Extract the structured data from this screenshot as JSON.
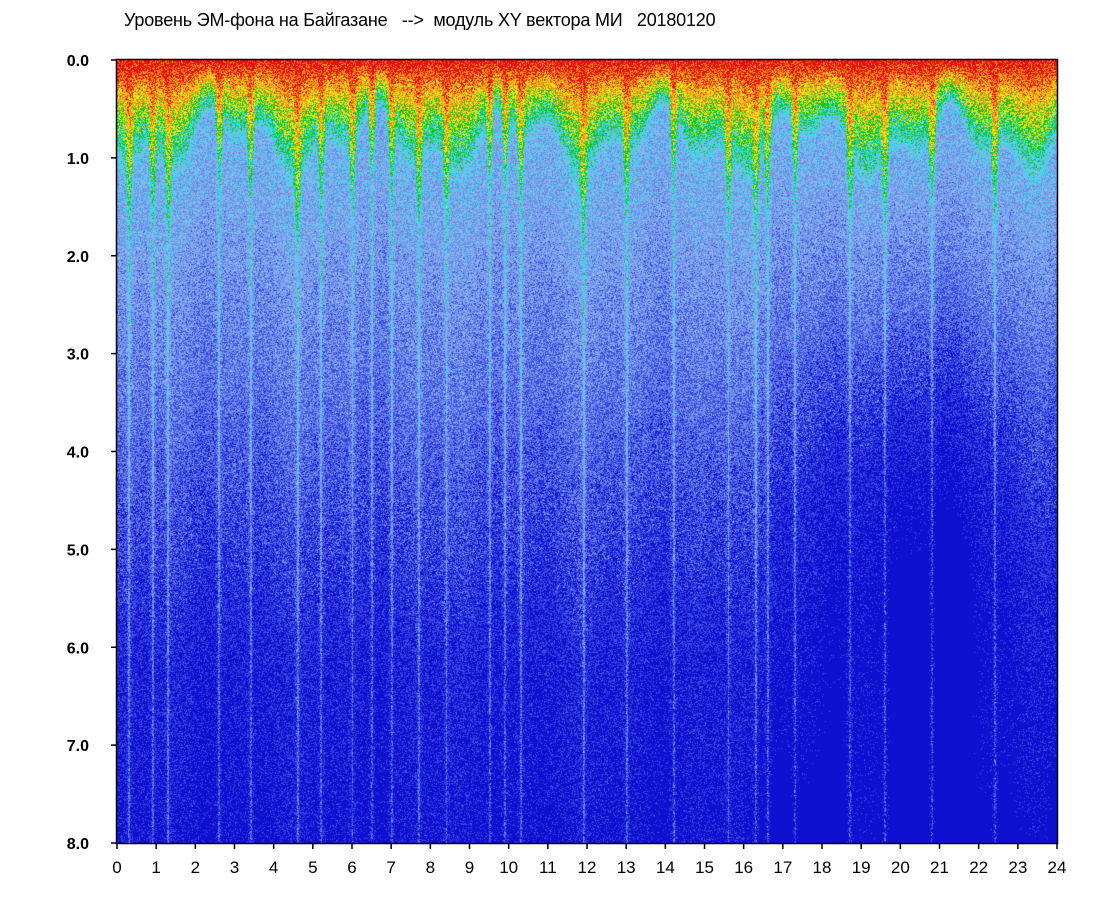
{
  "chart_data": {
    "type": "heatmap",
    "title": "Уровень ЭМ-фона на Байгазане   -->  модуль XY вектора МИ   20180120",
    "x": {
      "min": 0,
      "max": 24,
      "ticks": [
        "0",
        "1",
        "2",
        "3",
        "4",
        "5",
        "6",
        "7",
        "8",
        "9",
        "10",
        "11",
        "12",
        "13",
        "14",
        "15",
        "16",
        "17",
        "18",
        "19",
        "20",
        "21",
        "22",
        "23",
        "24"
      ]
    },
    "y": {
      "min": 0.0,
      "max": 8.0,
      "inverted": true,
      "ticks": [
        "0.0",
        "1.0",
        "2.0",
        "3.0",
        "4.0",
        "5.0",
        "6.0",
        "7.0",
        "8.0"
      ]
    },
    "colormap": [
      "#1010d0",
      "#3a4ae0",
      "#6f8ae8",
      "#86b4ee",
      "#3ad8e8",
      "#19c22a",
      "#e6e61a",
      "#f58c18",
      "#e21212"
    ],
    "dips_hours": [
      0.3,
      0.9,
      1.3,
      2.6,
      3.4,
      4.6,
      5.2,
      6.0,
      6.5,
      7.0,
      7.7,
      8.4,
      9.5,
      9.9,
      10.3,
      11.9,
      13.0,
      14.2,
      15.6,
      16.3,
      16.6,
      17.3,
      18.7,
      19.6,
      20.8,
      22.4
    ]
  }
}
